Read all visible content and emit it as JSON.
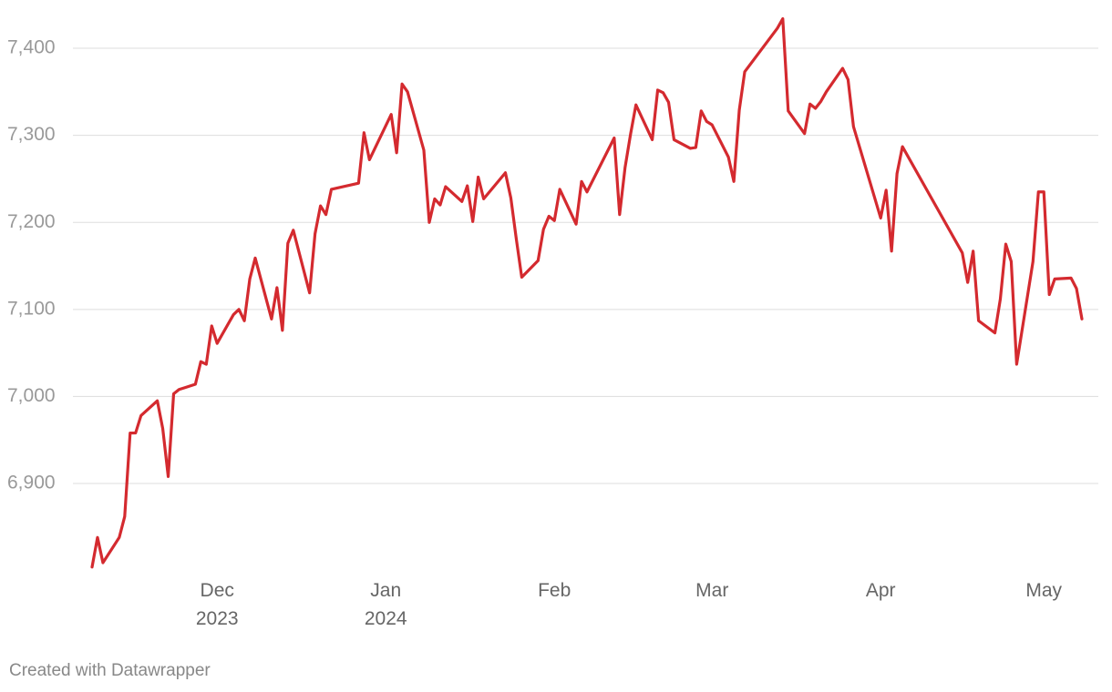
{
  "chart_data": {
    "type": "line",
    "footer": "Created with Datawrapper",
    "x": [
      "2023-11-08",
      "2023-11-09",
      "2023-11-10",
      "2023-11-13",
      "2023-11-14",
      "2023-11-15",
      "2023-11-16",
      "2023-11-17",
      "2023-11-20",
      "2023-11-21",
      "2023-11-22",
      "2023-11-23",
      "2023-11-24",
      "2023-11-25",
      "2023-11-27",
      "2023-11-28",
      "2023-11-29",
      "2023-11-30",
      "2023-12-01",
      "2023-12-04",
      "2023-12-05",
      "2023-12-06",
      "2023-12-07",
      "2023-12-08",
      "2023-12-11",
      "2023-12-12",
      "2023-12-13",
      "2023-12-14",
      "2023-12-15",
      "2023-12-18",
      "2023-12-19",
      "2023-12-20",
      "2023-12-21",
      "2023-12-22",
      "2023-12-27",
      "2023-12-28",
      "2023-12-29",
      "2024-01-02",
      "2024-01-03",
      "2024-01-04",
      "2024-01-05",
      "2024-01-08",
      "2024-01-09",
      "2024-01-10",
      "2024-01-11",
      "2024-01-12",
      "2024-01-15",
      "2024-01-16",
      "2024-01-17",
      "2024-01-18",
      "2024-01-19",
      "2024-01-23",
      "2024-01-24",
      "2024-01-25",
      "2024-01-26",
      "2024-01-29",
      "2024-01-30",
      "2024-01-31",
      "2024-02-01",
      "2024-02-02",
      "2024-02-05",
      "2024-02-06",
      "2024-02-07",
      "2024-02-12",
      "2024-02-13",
      "2024-02-14",
      "2024-02-15",
      "2024-02-16",
      "2024-02-19",
      "2024-02-20",
      "2024-02-21",
      "2024-02-22",
      "2024-02-23",
      "2024-02-26",
      "2024-02-27",
      "2024-02-28",
      "2024-02-29",
      "2024-03-01",
      "2024-03-04",
      "2024-03-05",
      "2024-03-06",
      "2024-03-07",
      "2024-03-13",
      "2024-03-14",
      "2024-03-15",
      "2024-03-18",
      "2024-03-19",
      "2024-03-20",
      "2024-03-21",
      "2024-03-22",
      "2024-03-25",
      "2024-03-26",
      "2024-03-27",
      "2024-04-01",
      "2024-04-02",
      "2024-04-03",
      "2024-04-04",
      "2024-04-05",
      "2024-04-16",
      "2024-04-17",
      "2024-04-18",
      "2024-04-19",
      "2024-04-22",
      "2024-04-23",
      "2024-04-24",
      "2024-04-25",
      "2024-04-26",
      "2024-04-29",
      "2024-04-30",
      "2024-05-01",
      "2024-05-02",
      "2024-05-03",
      "2024-05-06",
      "2024-05-07",
      "2024-05-08"
    ],
    "series": [
      {
        "color": "#d42a2f",
        "values": [
          6804,
          6838,
          6809,
          6838,
          6862,
          6958,
          6958,
          6978,
          6995,
          6963,
          6908,
          7003,
          7008,
          7010,
          7014,
          7040,
          7037,
          7081,
          7061,
          7094,
          7100,
          7087,
          7135,
          7159,
          7089,
          7125,
          7076,
          7176,
          7191,
          7119,
          7187,
          7219,
          7209,
          7238,
          7245,
          7303,
          7272,
          7324,
          7280,
          7359,
          7350,
          7283,
          7200,
          7227,
          7220,
          7241,
          7224,
          7242,
          7201,
          7252,
          7227,
          7257,
          7228,
          7181,
          7137,
          7156,
          7192,
          7207,
          7202,
          7238,
          7198,
          7247,
          7235,
          7297,
          7209,
          7263,
          7301,
          7335,
          7295,
          7352,
          7349,
          7338,
          7295,
          7285,
          7286,
          7328,
          7316,
          7312,
          7275,
          7247,
          7329,
          7373,
          7423,
          7434,
          7328,
          7302,
          7336,
          7331,
          7339,
          7350,
          7377,
          7364,
          7310,
          7205,
          7237,
          7167,
          7256,
          7287,
          7165,
          7131,
          7167,
          7087,
          7073,
          7112,
          7175,
          7155,
          7037,
          7155,
          7235,
          7235,
          7117,
          7135,
          7136,
          7124,
          7089
        ]
      }
    ],
    "xlim": [
      "2023-11-08",
      "2024-05-08"
    ],
    "xticks": [
      {
        "value": "2023-12-01",
        "label": "Dec 2023"
      },
      {
        "value": "2024-01-01",
        "label": "Jan 2024"
      },
      {
        "value": "2024-02-01",
        "label": "Feb"
      },
      {
        "value": "2024-03-01",
        "label": "Mar"
      },
      {
        "value": "2024-04-01",
        "label": "Apr"
      },
      {
        "value": "2024-05-01",
        "label": "May"
      }
    ],
    "ylim": [
      6800,
      7440
    ],
    "yticks": [
      {
        "value": 6900,
        "label": "6,900"
      },
      {
        "value": 7000,
        "label": "7,000"
      },
      {
        "value": 7100,
        "label": "7,100"
      },
      {
        "value": 7200,
        "label": "7,200"
      },
      {
        "value": 7300,
        "label": "7,300"
      },
      {
        "value": 7400,
        "label": "7,400"
      }
    ],
    "grid": true
  }
}
